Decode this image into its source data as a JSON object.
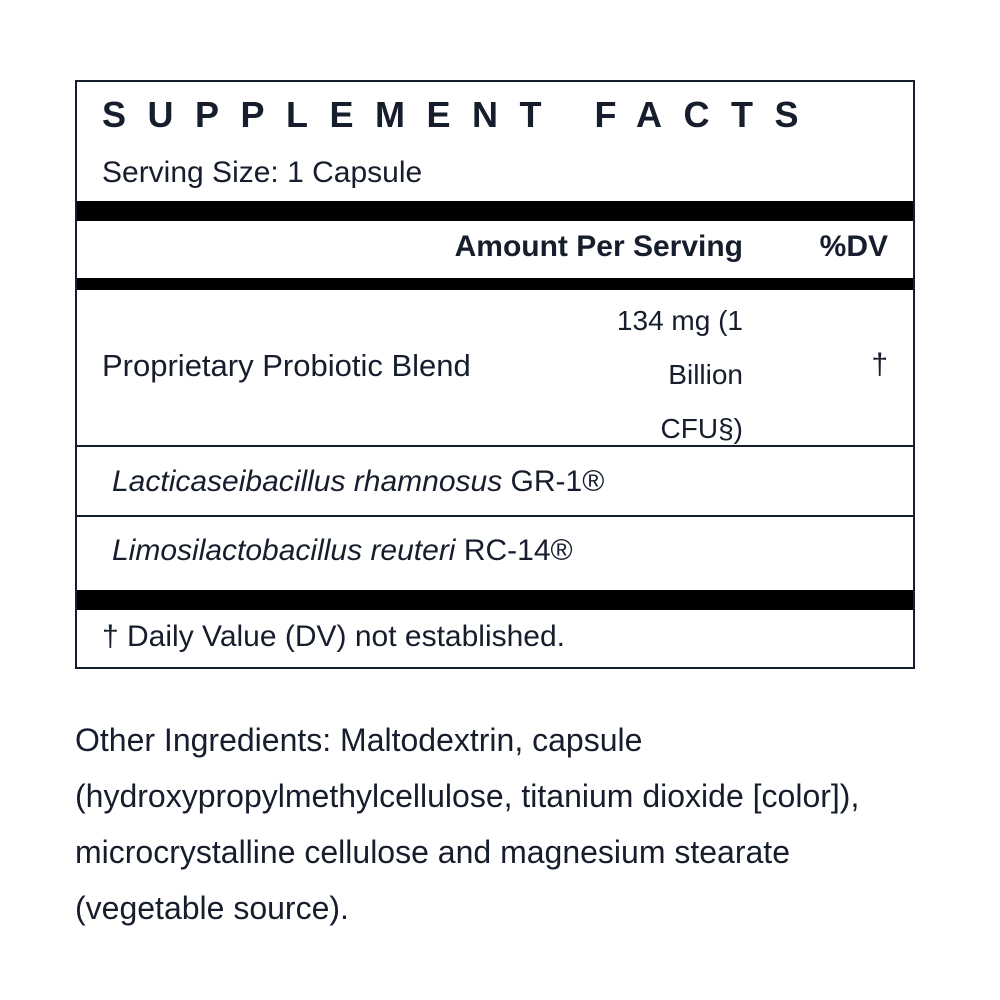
{
  "panel": {
    "title": "SUPPLEMENT FACTS",
    "serving_size": "Serving Size: 1 Capsule",
    "header": {
      "amount": "Amount Per Serving",
      "dv": "%DV"
    },
    "blend": {
      "name": "Proprietary Probiotic Blend",
      "amount_lines": [
        "134 mg (1",
        "Billion",
        "CFU§)"
      ],
      "dv": "†"
    },
    "ingredients": [
      {
        "italic": "Lacticaseibacillus rhamnosus",
        "strain": " GR-1®"
      },
      {
        "italic": "Limosilactobacillus reuteri",
        "strain": " RC-14®"
      }
    ],
    "footnote": "† Daily Value (DV) not established."
  },
  "other_ingredients": "Other Ingredients: Maltodextrin, capsule (hydroxypropylmethylcellulose, titanium dioxide [color]), microcrystalline cellulose and magnesium stearate (vegetable source)."
}
